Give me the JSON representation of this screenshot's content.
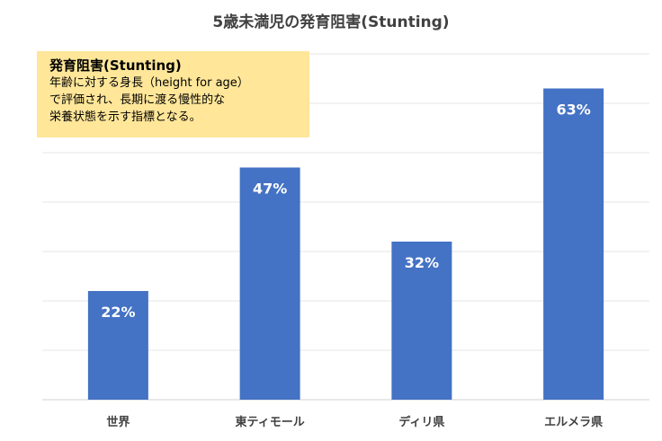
{
  "chart_data": {
    "type": "bar",
    "title": "5歳未満児の発育阻害(Stunting)",
    "categories": [
      "世界",
      "東ティモール",
      "ディリ県",
      "エルメラ県"
    ],
    "values": [
      22,
      47,
      32,
      63
    ],
    "value_labels": [
      "22%",
      "47%",
      "32%",
      "63%"
    ],
    "ylim": [
      0,
      70
    ],
    "grid": true,
    "bar_color": "#4472c4",
    "annotation": {
      "title": "発育阻害(Stunting)",
      "body": "年齢に対する身長（height for age）\nで評価され、長期に渡る慢性的な\n栄養状態を示す指標となる。",
      "background": "#ffe699"
    }
  }
}
